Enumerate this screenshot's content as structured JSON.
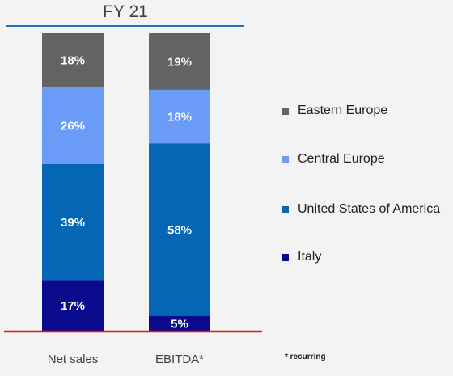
{
  "header": {
    "title": "FY 21"
  },
  "footnote": "* recurring",
  "chart_data": {
    "type": "bar",
    "stacked": true,
    "title": "FY 21",
    "categories": [
      "Net sales",
      "EBITDA*"
    ],
    "ylim": [
      0,
      100
    ],
    "series": [
      {
        "name": "Italy",
        "values": [
          17,
          5
        ],
        "labels": [
          "17%",
          "5%"
        ],
        "color": "#0a0a8c"
      },
      {
        "name": "United States of America",
        "values": [
          39,
          58
        ],
        "labels": [
          "39%",
          "58%"
        ],
        "color": "#0466b4"
      },
      {
        "name": "Central Europe",
        "values": [
          26,
          18
        ],
        "labels": [
          "26%",
          "18%"
        ],
        "color": "#6a9cf7"
      },
      {
        "name": "Eastern Europe",
        "values": [
          18,
          19
        ],
        "labels": [
          "18%",
          "19%"
        ],
        "color": "#636363"
      }
    ],
    "legend": {
      "placement": "right",
      "order": [
        "Eastern Europe",
        "Central Europe",
        "United States of America",
        "Italy"
      ]
    },
    "grid": false,
    "baseline_color": "#e8141a"
  }
}
